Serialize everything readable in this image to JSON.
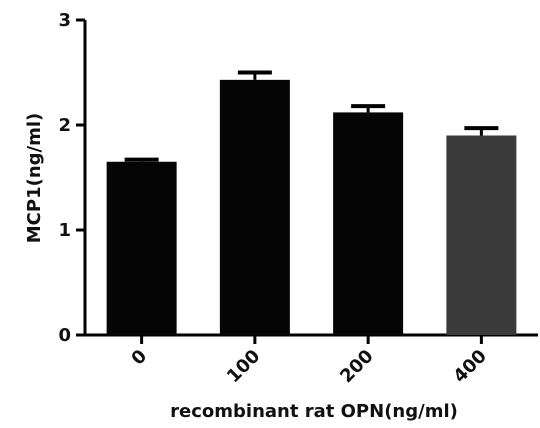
{
  "chart_data": {
    "type": "bar",
    "title": "",
    "xlabel": "recombinant rat OPN(ng/ml)",
    "ylabel": "MCP1(ng/ml)",
    "categories": [
      "0",
      "100",
      "200",
      "400"
    ],
    "values": [
      1.65,
      2.43,
      2.12,
      1.9
    ],
    "errors": [
      0.02,
      0.07,
      0.06,
      0.07
    ],
    "ylim": [
      0,
      3
    ],
    "yticks": [
      "0",
      "1",
      "2",
      "3"
    ],
    "grid": false,
    "legend": "none",
    "bar_colors": [
      "#050505",
      "#050505",
      "#050505",
      "#3a3a3a"
    ]
  }
}
